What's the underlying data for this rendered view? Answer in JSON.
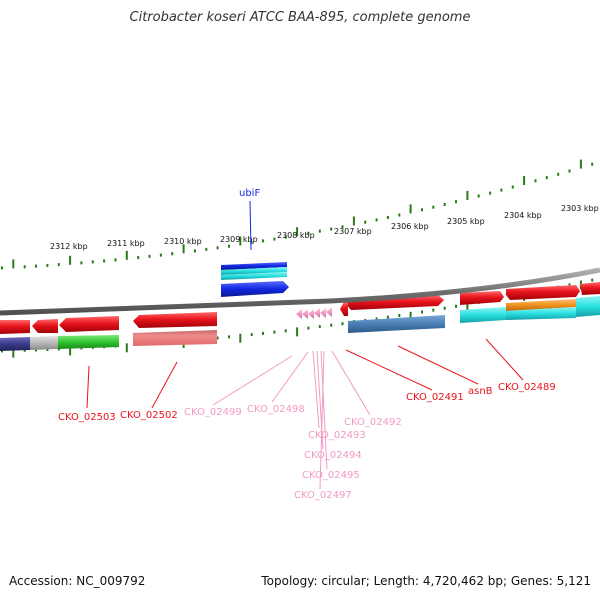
{
  "title": "Citrobacter koseri ATCC BAA-895, complete genome",
  "ruler": {
    "tick_labels": [
      "2312 kbp",
      "2311 kbp",
      "2310 kbp",
      "2309 kbp",
      "2308 kbp",
      "2307 kbp",
      "2306 kbp",
      "2305 kbp",
      "2304 kbp",
      "2303 kbp"
    ]
  },
  "genes": {
    "ubiF": "ubiF",
    "CKO_02503": "CKO_02503",
    "CKO_02502": "CKO_02502",
    "CKO_02499": "CKO_02499",
    "CKO_02498": "CKO_02498",
    "CKO_02493": "CKO_02493",
    "CKO_02494": "CKO_02494",
    "CKO_02495": "CKO_02495",
    "CKO_02497": "CKO_02497",
    "CKO_02492": "CKO_02492",
    "CKO_02491": "CKO_02491",
    "asnB": "asnB",
    "CKO_02489": "CKO_02489"
  },
  "footer": {
    "accession": "Accession: NC_009792",
    "summary": "Topology: circular; Length: 4,720,462 bp; Genes: 5,121"
  },
  "colors": {
    "red": "#e8141c",
    "pink": "#f29ac4",
    "blue": "#1028e0",
    "cyan": "#29e0e0",
    "steel": "#4a7fb5",
    "green": "#2fc42f",
    "orange": "#f0921e",
    "navy": "#3a3a8a",
    "grey": "#b8b8b8",
    "tick_green": "#2a7a1a",
    "backbone": "#808080"
  }
}
